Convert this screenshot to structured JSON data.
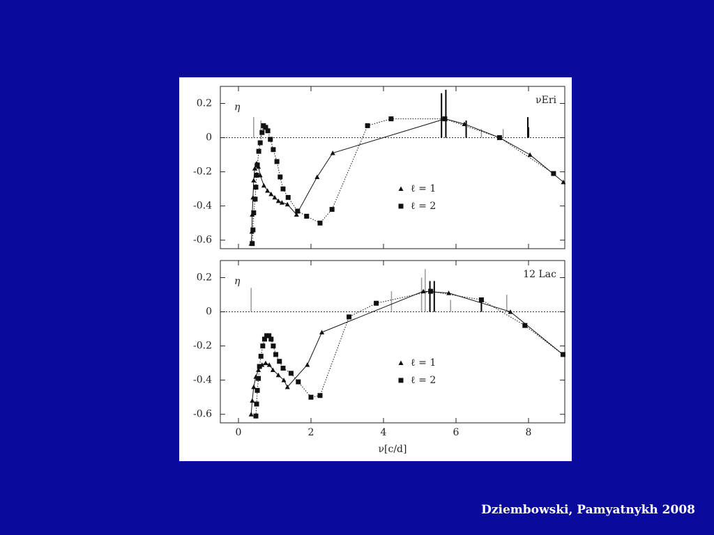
{
  "chart_data": [
    {
      "type": "line",
      "name_label": "νEri",
      "ylabel": "η",
      "xlim": [
        -0.5,
        9
      ],
      "ylim": [
        -0.65,
        0.3
      ],
      "xticks": [
        0,
        2,
        4,
        6,
        8
      ],
      "yticks": [
        -0.6,
        -0.4,
        -0.2,
        0,
        0.2
      ],
      "reference_line": 0,
      "legend": "center",
      "series": [
        {
          "name": "ℓ = 1",
          "marker": "triangle",
          "dash": "solid",
          "color": "#111111",
          "x": [
            0.35,
            0.37,
            0.38,
            0.4,
            0.42,
            0.45,
            0.5,
            0.55,
            0.6,
            0.7,
            0.8,
            0.9,
            1.0,
            1.1,
            1.2,
            1.35,
            1.6,
            2.17,
            2.6,
            5.7,
            6.23,
            7.2,
            8.04,
            8.96
          ],
          "values": [
            -0.62,
            -0.55,
            -0.45,
            -0.35,
            -0.25,
            -0.18,
            -0.15,
            -0.17,
            -0.22,
            -0.28,
            -0.31,
            -0.33,
            -0.35,
            -0.37,
            -0.38,
            -0.39,
            -0.45,
            -0.23,
            -0.09,
            0.11,
            0.08,
            0.0,
            -0.1,
            -0.26
          ]
        },
        {
          "name": "ℓ = 2",
          "marker": "square",
          "dash": "dotted",
          "color": "#111111",
          "x": [
            0.38,
            0.4,
            0.42,
            0.46,
            0.48,
            0.5,
            0.52,
            0.56,
            0.6,
            0.65,
            0.69,
            0.75,
            0.81,
            0.88,
            0.96,
            1.06,
            1.15,
            1.23,
            1.37,
            1.63,
            1.88,
            2.25,
            2.58,
            3.56,
            4.21,
            5.69,
            7.2,
            8.69
          ],
          "values": [
            -0.62,
            -0.54,
            -0.44,
            -0.36,
            -0.29,
            -0.22,
            -0.16,
            -0.08,
            -0.03,
            0.03,
            0.07,
            0.06,
            0.04,
            -0.01,
            -0.07,
            -0.14,
            -0.23,
            -0.3,
            -0.35,
            -0.43,
            -0.46,
            -0.5,
            -0.42,
            0.07,
            0.11,
            0.11,
            0.0,
            -0.21
          ]
        }
      ],
      "observed": {
        "x": [
          0.42,
          0.62,
          5.6,
          5.72,
          6.28,
          6.7,
          7.3,
          7.98,
          8.0
        ],
        "values": [
          0.12,
          0.1,
          0.26,
          0.28,
          0.1,
          0.05,
          0.05,
          0.12,
          0.06
        ],
        "colors": [
          "#999999",
          "#999999",
          "#000000",
          "#000000",
          "#000000",
          "#999999",
          "#999999",
          "#000000",
          "#000000"
        ]
      }
    },
    {
      "type": "line",
      "name_label": "12 Lac",
      "ylabel": "η",
      "xlabel": "ν[c/d]",
      "xlim": [
        -0.5,
        9
      ],
      "ylim": [
        -0.65,
        0.3
      ],
      "xticks": [
        0,
        2,
        4,
        6,
        8
      ],
      "yticks": [
        -0.6,
        -0.4,
        -0.2,
        0,
        0.2
      ],
      "reference_line": 0,
      "legend": "center",
      "series": [
        {
          "name": "ℓ = 1",
          "marker": "triangle",
          "dash": "solid",
          "color": "#111111",
          "x": [
            0.35,
            0.38,
            0.42,
            0.48,
            0.55,
            0.65,
            0.75,
            0.85,
            0.95,
            1.1,
            1.25,
            1.35,
            1.9,
            2.3,
            5.1,
            5.8,
            7.5,
            8.95
          ],
          "values": [
            -0.6,
            -0.52,
            -0.44,
            -0.38,
            -0.34,
            -0.31,
            -0.3,
            -0.31,
            -0.34,
            -0.37,
            -0.4,
            -0.44,
            -0.31,
            -0.12,
            0.12,
            0.11,
            0.0,
            -0.25
          ]
        },
        {
          "name": "ℓ = 2",
          "marker": "square",
          "dash": "dotted",
          "color": "#111111",
          "x": [
            0.48,
            0.5,
            0.52,
            0.55,
            0.58,
            0.62,
            0.67,
            0.72,
            0.78,
            0.84,
            0.9,
            0.96,
            1.03,
            1.13,
            1.23,
            1.45,
            1.65,
            2.0,
            2.25,
            3.05,
            3.8,
            5.3,
            6.7,
            7.9,
            8.95
          ],
          "values": [
            -0.61,
            -0.54,
            -0.46,
            -0.39,
            -0.32,
            -0.26,
            -0.2,
            -0.16,
            -0.14,
            -0.14,
            -0.16,
            -0.2,
            -0.25,
            -0.29,
            -0.33,
            -0.36,
            -0.41,
            -0.5,
            -0.49,
            -0.03,
            0.05,
            0.12,
            0.07,
            -0.08,
            -0.25
          ]
        }
      ],
      "observed": {
        "x": [
          0.35,
          4.22,
          5.05,
          5.15,
          5.28,
          5.4,
          5.85,
          6.7,
          7.4
        ],
        "values": [
          0.14,
          0.12,
          0.2,
          0.25,
          0.18,
          0.18,
          0.07,
          0.08,
          0.1
        ],
        "colors": [
          "#999999",
          "#999999",
          "#999999",
          "#999999",
          "#000000",
          "#000000",
          "#999999",
          "#000000",
          "#999999"
        ]
      }
    }
  ],
  "citation": "Dziembowski, Pamyatnykh 2008"
}
